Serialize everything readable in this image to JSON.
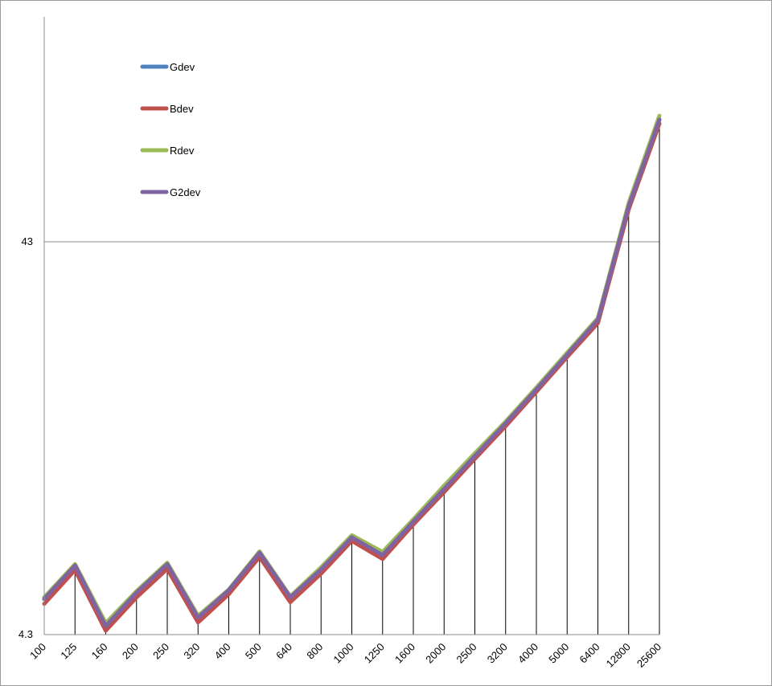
{
  "chart_data": {
    "type": "line",
    "title": "",
    "xlabel": "",
    "ylabel": "",
    "x_scale": "category",
    "y_scale": "log10",
    "y_tick_labels": [
      "4.3",
      "43"
    ],
    "ylim": [
      4.3,
      91
    ],
    "grid": "major horizontal at 43",
    "drop_lines": true,
    "legend_position": "top-left",
    "categories": [
      "100",
      "125",
      "160",
      "200",
      "250",
      "320",
      "400",
      "500",
      "640",
      "800",
      "1000",
      "1250",
      "1600",
      "2000",
      "2500",
      "3200",
      "4000",
      "5000",
      "6400",
      "12800",
      "25600"
    ],
    "series": [
      {
        "name": "Gdev",
        "color": "#4f81bd",
        "values": [
          5.3,
          6.45,
          4.52,
          5.5,
          6.5,
          4.75,
          5.58,
          6.95,
          5.35,
          6.3,
          7.62,
          6.85,
          8.34,
          10.1,
          12.25,
          14.85,
          18.1,
          22.2,
          27.25,
          53.0,
          88.0
        ]
      },
      {
        "name": "Bdev",
        "color": "#c0504d",
        "values": [
          5.15,
          6.28,
          4.4,
          5.35,
          6.32,
          4.62,
          5.45,
          6.78,
          5.2,
          6.15,
          7.45,
          6.7,
          8.2,
          9.92,
          12.05,
          14.6,
          17.85,
          21.9,
          26.7,
          52.0,
          86.0
        ]
      },
      {
        "name": "Rdev",
        "color": "#9bbb59",
        "values": [
          5.35,
          6.5,
          4.6,
          5.55,
          6.55,
          4.8,
          5.6,
          7.0,
          5.38,
          6.38,
          7.7,
          6.98,
          8.45,
          10.3,
          12.45,
          15.0,
          18.3,
          22.45,
          27.5,
          54.0,
          90.0
        ]
      },
      {
        "name": "G2dev",
        "color": "#8064a2",
        "values": [
          5.3,
          6.45,
          4.52,
          5.5,
          6.5,
          4.75,
          5.58,
          6.95,
          5.35,
          6.3,
          7.6,
          6.85,
          8.34,
          10.1,
          12.25,
          14.85,
          18.1,
          22.2,
          27.25,
          53.0,
          88.0
        ]
      }
    ]
  }
}
